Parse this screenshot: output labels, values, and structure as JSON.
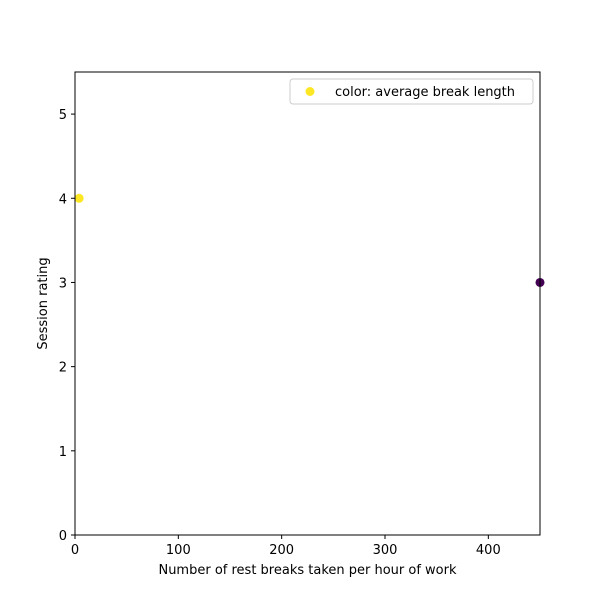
{
  "chart_data": {
    "type": "scatter",
    "xlabel": "Number of rest breaks taken per hour of work",
    "ylabel": "Session rating",
    "xlim": [
      0,
      450
    ],
    "ylim": [
      0,
      5.5
    ],
    "xticks": [
      0,
      100,
      200,
      300,
      400
    ],
    "yticks": [
      0,
      1,
      2,
      3,
      4,
      5
    ],
    "grid": false,
    "legend": {
      "placement": "top-right",
      "label": "color: average break length",
      "color": "#fde725"
    },
    "points": [
      {
        "x": 4,
        "y": 4,
        "color": "#fde725"
      },
      {
        "x": 450,
        "y": 3,
        "color": "#440154"
      }
    ]
  }
}
